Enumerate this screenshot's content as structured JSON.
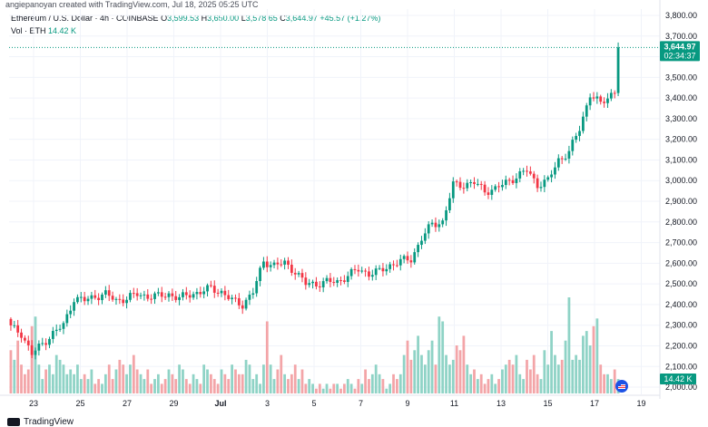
{
  "header": {
    "attribution": "angiepanoyan created with TradingView.com, Jul 18, 2025 05:25 UTC"
  },
  "legend": {
    "symbol": "Ethereum / U.S. Dollar · 4h · COINBASE",
    "o_label": "O",
    "o_value": "3,599.53",
    "h_label": "H",
    "h_value": "3,650.00",
    "l_label": "L",
    "l_value": "3,578.65",
    "c_label": "C",
    "c_value": "3,644.97",
    "change": "+45.57 (+1.27%)",
    "vol_label": "Vol · ETH",
    "vol_value": "14.42 K"
  },
  "badges": {
    "price": "3,644.97",
    "countdown": "02:34:37",
    "volume": "14.42 K"
  },
  "footer": {
    "brand": "TradingView"
  },
  "chart_data": {
    "type": "candlestick",
    "instrument": "ETH/USD",
    "timeframe": "4h",
    "colors": {
      "up": "#089981",
      "down": "#f23645",
      "vol_up": "#8fd3c6",
      "vol_down": "#f3a5a8"
    },
    "price_axis": {
      "ticks": [
        "3,800.00",
        "3,700.00",
        "3,600.00",
        "3,500.00",
        "3,400.00",
        "3,300.00",
        "3,200.00",
        "3,100.00",
        "3,000.00",
        "2,900.00",
        "2,800.00",
        "2,700.00",
        "2,600.00",
        "2,500.00",
        "2,400.00",
        "2,300.00",
        "2,200.00",
        "2,100.00",
        "2,000.00"
      ],
      "range": [
        2000,
        3800
      ]
    },
    "time_axis": {
      "labels": [
        "23",
        "25",
        "27",
        "29",
        "Jul",
        "3",
        "5",
        "7",
        "9",
        "11",
        "13",
        "15",
        "17",
        "19"
      ]
    },
    "last_price": 3644.97,
    "anchors": [
      [
        0,
        2290
      ],
      [
        3,
        2260
      ],
      [
        6,
        2160
      ],
      [
        9,
        2210
      ],
      [
        12,
        2260
      ],
      [
        15,
        2300
      ],
      [
        18,
        2430
      ],
      [
        21,
        2420
      ],
      [
        24,
        2440
      ],
      [
        27,
        2450
      ],
      [
        30,
        2420
      ],
      [
        33,
        2430
      ],
      [
        36,
        2450
      ],
      [
        39,
        2440
      ],
      [
        42,
        2440
      ],
      [
        45,
        2450
      ],
      [
        48,
        2430
      ],
      [
        51,
        2450
      ],
      [
        54,
        2460
      ],
      [
        57,
        2480
      ],
      [
        60,
        2460
      ],
      [
        63,
        2420
      ],
      [
        66,
        2400
      ],
      [
        69,
        2460
      ],
      [
        72,
        2610
      ],
      [
        75,
        2590
      ],
      [
        78,
        2600
      ],
      [
        81,
        2560
      ],
      [
        84,
        2500
      ],
      [
        87,
        2500
      ],
      [
        90,
        2510
      ],
      [
        93,
        2510
      ],
      [
        96,
        2540
      ],
      [
        99,
        2570
      ],
      [
        102,
        2550
      ],
      [
        105,
        2560
      ],
      [
        108,
        2590
      ],
      [
        111,
        2610
      ],
      [
        114,
        2620
      ],
      [
        117,
        2720
      ],
      [
        120,
        2790
      ],
      [
        123,
        2800
      ],
      [
        126,
        2980
      ],
      [
        129,
        2980
      ],
      [
        132,
        2990
      ],
      [
        135,
        2950
      ],
      [
        138,
        2960
      ],
      [
        141,
        2990
      ],
      [
        144,
        3020
      ],
      [
        147,
        3050
      ],
      [
        150,
        2980
      ],
      [
        153,
        3000
      ],
      [
        156,
        3100
      ],
      [
        159,
        3140
      ],
      [
        162,
        3250
      ],
      [
        165,
        3420
      ],
      [
        168,
        3370
      ],
      [
        171,
        3420
      ],
      [
        174,
        3460
      ],
      [
        176,
        3600
      ],
      [
        177,
        3645
      ]
    ],
    "volume": {
      "pattern": [
        0.45,
        0.35,
        0.55,
        0.3,
        0.2,
        0.25,
        0.7,
        0.8,
        0.3,
        0.15,
        0.25,
        0.3,
        0.2,
        0.4,
        0.35,
        0.3,
        0.2,
        0.25,
        0.2,
        0.3,
        0.15,
        0.2,
        0.15,
        0.25,
        0.1,
        0.15,
        0.1,
        0.2,
        0.3,
        0.15,
        0.25,
        0.35,
        0.3,
        0.2,
        0.3,
        0.4,
        0.25,
        0.2,
        0.15,
        0.25,
        0.1,
        0.15,
        0.2,
        0.1,
        0.15,
        0.25,
        0.2,
        0.15,
        0.3,
        0.25,
        0.15,
        0.1,
        0.2,
        0.15,
        0.1,
        0.3,
        0.25,
        0.2,
        0.15,
        0.1,
        0.25,
        0.2,
        0.15,
        0.3,
        0.25,
        0.2,
        0.2,
        0.35,
        0.3,
        0.15,
        0.2,
        0.1,
        0.3,
        0.75,
        0.3,
        0.15,
        0.25,
        0.4,
        0.2,
        0.15,
        0.2,
        0.3,
        0.15,
        0.25,
        0.1,
        0.15,
        0.1,
        0.05,
        0.1,
        0.05,
        0.1,
        0.05,
        0.1,
        0.1,
        0.05,
        0.1,
        0.15,
        0.1,
        0.05,
        0.15,
        0.1,
        0.25,
        0.15,
        0.2,
        0.3,
        0.2,
        0.15,
        0.05,
        0.1,
        0.2,
        0.15,
        0.2,
        0.4,
        0.55,
        0.35,
        0.45,
        0.6,
        0.4,
        0.3,
        0.45,
        0.55,
        0.3,
        0.8,
        0.75,
        0.4,
        0.3,
        0.35,
        0.5,
        0.45,
        0.6,
        0.3,
        0.2,
        0.25,
        0.15,
        0.2,
        0.1,
        0.15,
        0.2,
        0.1,
        0.15,
        0.25,
        0.3,
        0.35,
        0.3,
        0.4,
        0.2,
        0.15,
        0.35,
        0.25,
        0.4,
        0.2,
        0.15,
        0.45,
        0.3,
        0.65,
        0.4,
        0.3,
        0.35,
        0.55,
        1.0,
        0.35,
        0.4,
        0.35,
        0.6,
        0.65,
        0.5,
        0.7,
        0.78,
        0.3,
        0.2,
        0.2,
        0.15,
        0.25,
        0.15
      ],
      "max_value": 33000
    }
  }
}
